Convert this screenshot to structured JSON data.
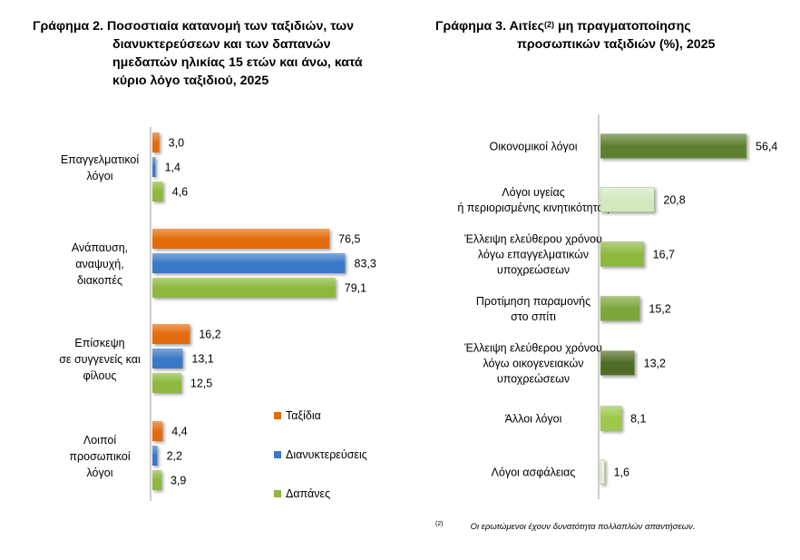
{
  "chart_data": [
    {
      "type": "bar",
      "orientation": "horizontal",
      "title_prefix": "Γράφημα 2.",
      "title_line1": "Ποσοστιαία κατανομή των ταξιδιών, των",
      "title_lines": [
        "διανυκτερεύσεων και των δαπανών",
        "ημεδαπών ηλικίας 15 ετών και άνω, κατά",
        "κύριο λόγο ταξιδιού, 2025"
      ],
      "categories": [
        [
          "Επαγγελματικοί",
          "λόγοι"
        ],
        [
          "Ανάπαυση,",
          "αναψυχή,",
          "διακοπές"
        ],
        [
          "Επίσκεψη",
          "σε συγγενείς και",
          "φίλους"
        ],
        [
          "Λοιποί",
          "προσωπικοί",
          "λόγοι"
        ]
      ],
      "series": [
        {
          "name": "Ταξίδια",
          "color": "#E36C0A",
          "values": [
            3.0,
            76.5,
            16.2,
            4.4
          ],
          "labels": [
            "3,0",
            "76,5",
            "16,2",
            "4,4"
          ]
        },
        {
          "name": "Διανυκτερεύσεις",
          "color": "#3A78C8",
          "values": [
            1.4,
            83.3,
            13.1,
            2.2
          ],
          "labels": [
            "1,4",
            "83,3",
            "13,1",
            "2,2"
          ]
        },
        {
          "name": "Δαπάνες",
          "color": "#8DB83E",
          "values": [
            4.6,
            79.1,
            12.5,
            3.9
          ],
          "labels": [
            "4,6",
            "79,1",
            "12,5",
            "3,9"
          ]
        }
      ],
      "xlim": [
        0,
        100
      ],
      "legend_position": "bottom-right"
    },
    {
      "type": "bar",
      "orientation": "horizontal",
      "title_prefix": "Γράφημα 3.",
      "title_line1_before": "Αιτίες",
      "title_sup": "(2)",
      "title_line1_after": "μη πραγματοποίησης",
      "title_lines": [
        "προσωπικών ταξιδιών (%), 2025"
      ],
      "categories": [
        [
          "Οικονομικοί λόγοι"
        ],
        [
          "Λόγοι υγείας",
          "ή περιορισμένης κινητικότητας"
        ],
        [
          "Έλλειψη ελεύθερου χρόνου",
          "λόγω  επαγγελματικών",
          "υποχρεώσεων"
        ],
        [
          "Προτίμηση παραμονής",
          "στο σπίτι"
        ],
        [
          "Έλλειψη ελεύθερου χρόνου",
          "λόγω οικογενειακών",
          "υποχρεώσεων"
        ],
        [
          "Άλλοι λόγοι"
        ],
        [
          "Λόγοι ασφάλειας"
        ]
      ],
      "values": [
        56.4,
        20.8,
        16.7,
        15.2,
        13.2,
        8.1,
        1.6
      ],
      "labels": [
        "56,4",
        "20,8",
        "16,7",
        "15,2",
        "13,2",
        "8,1",
        "1,6"
      ],
      "colors": [
        "#5E7F2E",
        "#D4E8C0",
        "#8DB83E",
        "#7BA73A",
        "#4F6B25",
        "#9DC84A",
        "#E5EFD9"
      ],
      "xlim": [
        0,
        100
      ]
    }
  ],
  "footnote": {
    "mark": "(2)",
    "text": "Οι ερωτώμενοι έχουν δυνατότητα πολλαπλών απαντήσεων."
  }
}
